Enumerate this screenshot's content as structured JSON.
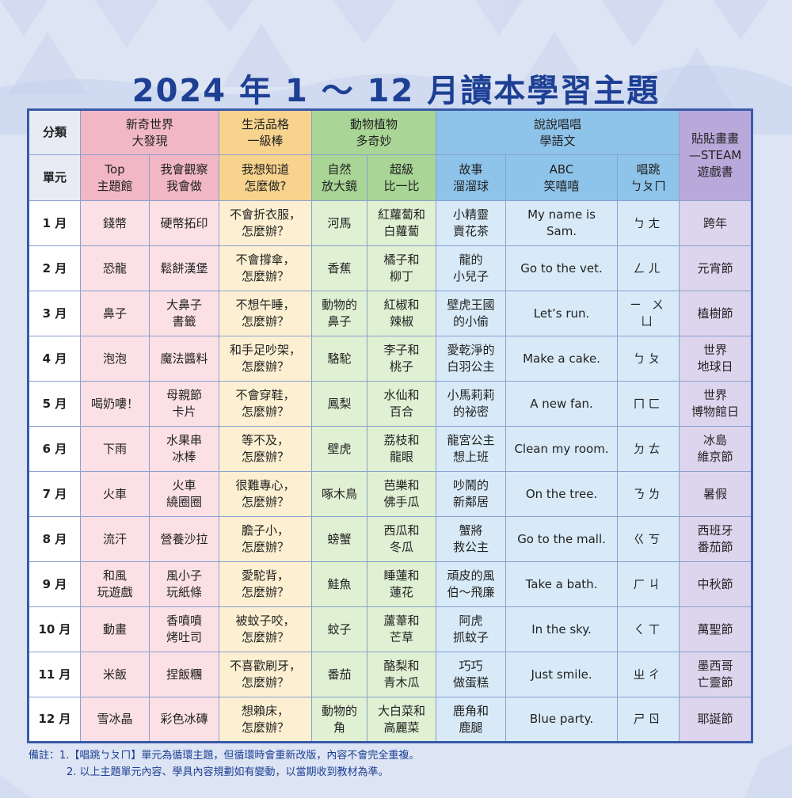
{
  "title": "2024 年 1 ～ 12 月讀本學習主題",
  "header": {
    "row1_label": "分類",
    "row2_label": "單元",
    "groups": [
      {
        "l1": "新奇世界",
        "l2": "大發現"
      },
      {
        "l1": "生活品格",
        "l2": "一級棒"
      },
      {
        "l1": "動物植物",
        "l2": "多奇妙"
      },
      {
        "l1": "說說唱唱",
        "l2": "學語文"
      },
      {
        "l1": "貼貼畫畫",
        "l2": "—STEAM",
        "l3": "遊戲書"
      }
    ],
    "units": [
      {
        "l1": "Top",
        "l2": "主題館"
      },
      {
        "l1": "我會觀察",
        "l2": "我會做"
      },
      {
        "l1": "我想知道",
        "l2": "怎麼做?"
      },
      {
        "l1": "自然",
        "l2": "放大鏡"
      },
      {
        "l1": "超級",
        "l2": "比一比"
      },
      {
        "l1": "故事",
        "l2": "溜溜球"
      },
      {
        "l1": "ABC",
        "l2": "笑嘻嘻"
      },
      {
        "l1": "唱跳",
        "l2": "ㄅㄆㄇ"
      }
    ]
  },
  "rows": [
    {
      "month": "1 月",
      "c1": [
        "錢幣"
      ],
      "c2": [
        "硬幣拓印"
      ],
      "c3": [
        "不會折衣服，",
        "怎麼辦？"
      ],
      "c4": [
        "河馬"
      ],
      "c5": [
        "紅蘿蔔和",
        "白蘿蔔"
      ],
      "c6": [
        "小精靈",
        "賣花茶"
      ],
      "c7": [
        "My name is",
        "Sam."
      ],
      "c8": [
        "ㄅㄤ"
      ],
      "c9": [
        "跨年"
      ]
    },
    {
      "month": "2 月",
      "c1": [
        "恐龍"
      ],
      "c2": [
        "鬆餅漢堡"
      ],
      "c3": [
        "不會撐傘，",
        "怎麼辦？"
      ],
      "c4": [
        "香蕉"
      ],
      "c5": [
        "橘子和",
        "柳丁"
      ],
      "c6": [
        "龍的",
        "小兒子"
      ],
      "c7": [
        "Go to the vet."
      ],
      "c8": [
        "ㄥㄦ"
      ],
      "c9": [
        "元宵節"
      ]
    },
    {
      "month": "3 月",
      "c1": [
        "鼻子"
      ],
      "c2": [
        "大鼻子",
        "書籤"
      ],
      "c3": [
        "不想午睡，",
        "怎麼辦？"
      ],
      "c4": [
        "動物的",
        "鼻子"
      ],
      "c5": [
        "紅椒和",
        "辣椒"
      ],
      "c6": [
        "壁虎王國",
        "的小偷"
      ],
      "c7": [
        "Let’s run."
      ],
      "c8": [
        "ㄧ ㄨ",
        "ㄩ"
      ],
      "c9": [
        "植樹節"
      ]
    },
    {
      "month": "4 月",
      "c1": [
        "泡泡"
      ],
      "c2": [
        "魔法醬料"
      ],
      "c3": [
        "和手足吵架，",
        "怎麼辦？"
      ],
      "c4": [
        "駱駝"
      ],
      "c5": [
        "李子和",
        "桃子"
      ],
      "c6": [
        "愛乾淨的",
        "白羽公主"
      ],
      "c7": [
        "Make a cake."
      ],
      "c8": [
        "ㄅㄆ"
      ],
      "c9": [
        "世界",
        "地球日"
      ]
    },
    {
      "month": "5 月",
      "c1": [
        "喝奶嘍！"
      ],
      "c2": [
        "母親節",
        "卡片"
      ],
      "c3": [
        "不會穿鞋，",
        "怎麼辦？"
      ],
      "c4": [
        "鳳梨"
      ],
      "c5": [
        "水仙和",
        "百合"
      ],
      "c6": [
        "小馬莉莉",
        "的祕密"
      ],
      "c7": [
        "A new fan."
      ],
      "c8": [
        "ㄇㄈ"
      ],
      "c9": [
        "世界",
        "博物館日"
      ]
    },
    {
      "month": "6 月",
      "c1": [
        "下雨"
      ],
      "c2": [
        "水果串",
        "冰棒"
      ],
      "c3": [
        "等不及，",
        "怎麼辦？"
      ],
      "c4": [
        "壁虎"
      ],
      "c5": [
        "荔枝和",
        "龍眼"
      ],
      "c6": [
        "龍宮公主",
        "想上班"
      ],
      "c7": [
        "Clean my room."
      ],
      "c8": [
        "ㄉㄊ"
      ],
      "c9": [
        "冰島",
        "維京節"
      ]
    },
    {
      "month": "7 月",
      "c1": [
        "火車"
      ],
      "c2": [
        "火車",
        "繞圈圈"
      ],
      "c3": [
        "很難專心，",
        "怎麼辦？"
      ],
      "c4": [
        "啄木鳥"
      ],
      "c5": [
        "芭樂和",
        "佛手瓜"
      ],
      "c6": [
        "吵鬧的",
        "新鄰居"
      ],
      "c7": [
        "On the tree."
      ],
      "c8": [
        "ㄋㄌ"
      ],
      "c9": [
        "暑假"
      ]
    },
    {
      "month": "8 月",
      "c1": [
        "流汗"
      ],
      "c2": [
        "營養沙拉"
      ],
      "c3": [
        "膽子小，",
        "怎麼辦？"
      ],
      "c4": [
        "螃蟹"
      ],
      "c5": [
        "西瓜和",
        "冬瓜"
      ],
      "c6": [
        "蟹將",
        "救公主"
      ],
      "c7": [
        "Go to the mall."
      ],
      "c8": [
        "ㄍㄎ"
      ],
      "c9": [
        "西班牙",
        "番茄節"
      ]
    },
    {
      "month": "9 月",
      "c1": [
        "和風",
        "玩遊戲"
      ],
      "c2": [
        "風小子",
        "玩紙條"
      ],
      "c3": [
        "愛駝背，",
        "怎麼辦？"
      ],
      "c4": [
        "鮭魚"
      ],
      "c5": [
        "睡蓮和",
        "蓮花"
      ],
      "c6": [
        "頑皮的風",
        "伯～飛廉"
      ],
      "c7": [
        "Take a bath."
      ],
      "c8": [
        "ㄏㄐ"
      ],
      "c9": [
        "中秋節"
      ]
    },
    {
      "month": "10 月",
      "c1": [
        "動畫"
      ],
      "c2": [
        "香噴噴",
        "烤吐司"
      ],
      "c3": [
        "被蚊子咬，",
        "怎麼辦？"
      ],
      "c4": [
        "蚊子"
      ],
      "c5": [
        "蘆葦和",
        "芒草"
      ],
      "c6": [
        "阿虎",
        "抓蚊子"
      ],
      "c7": [
        "In the sky."
      ],
      "c8": [
        "ㄑㄒ"
      ],
      "c9": [
        "萬聖節"
      ]
    },
    {
      "month": "11 月",
      "c1": [
        "米飯"
      ],
      "c2": [
        "捏飯糰"
      ],
      "c3": [
        "不喜歡刷牙，",
        "怎麼辦？"
      ],
      "c4": [
        "番茄"
      ],
      "c5": [
        "酪梨和",
        "青木瓜"
      ],
      "c6": [
        "巧巧",
        "做蛋糕"
      ],
      "c7": [
        "Just smile."
      ],
      "c8": [
        "ㄓㄔ"
      ],
      "c9": [
        "墨西哥",
        "亡靈節"
      ]
    },
    {
      "month": "12 月",
      "c1": [
        "雪冰晶"
      ],
      "c2": [
        "彩色冰磚"
      ],
      "c3": [
        "想賴床，",
        "怎麼辦？"
      ],
      "c4": [
        "動物的",
        "角"
      ],
      "c5": [
        "大白菜和",
        "高麗菜"
      ],
      "c6": [
        "鹿角和",
        "鹿腿"
      ],
      "c7": [
        "Blue party."
      ],
      "c8": [
        "ㄕㄖ"
      ],
      "c9": [
        "耶誕節"
      ]
    }
  ],
  "notes": {
    "line1": "備註：1.【唱跳ㄅㄆㄇ】單元為循環主題，但循環時會重新改版，內容不會完全重複。",
    "line2": "2. 以上主題單元內容、學具內容規劃如有變動，以當期收到教材為準。"
  }
}
